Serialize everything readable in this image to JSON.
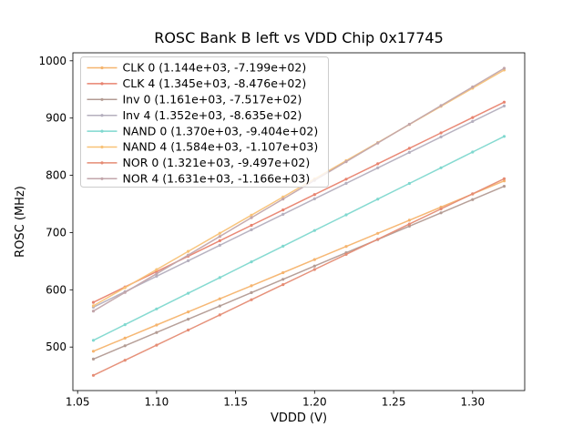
{
  "chart_data": {
    "type": "line",
    "title": "ROSC Bank B left vs VDD Chip 0x17745",
    "xlabel": "VDDD (V)",
    "ylabel": "ROSC (MHz)",
    "xlim": [
      1.047,
      1.333
    ],
    "ylim": [
      424,
      1014
    ],
    "grid": false,
    "legend_position": "upper left",
    "marker": "point",
    "xticks": [
      1.05,
      1.1,
      1.15,
      1.2,
      1.25,
      1.3
    ],
    "xtick_labels": [
      "1.05",
      "1.10",
      "1.15",
      "1.20",
      "1.25",
      "1.30"
    ],
    "yticks": [
      500,
      600,
      700,
      800,
      900,
      1000
    ],
    "ytick_labels": [
      "500",
      "600",
      "700",
      "800",
      "900",
      "1000"
    ],
    "x": [
      1.06,
      1.08,
      1.1,
      1.12,
      1.14,
      1.16,
      1.18,
      1.2,
      1.22,
      1.24,
      1.26,
      1.28,
      1.3,
      1.32
    ],
    "series": [
      {
        "name": "CLK 0 (1.144e+03, -7.199e+02)",
        "fit_slope": 1144.0,
        "fit_intercept": -719.9,
        "color": "#f5b46e",
        "values": [
          492.7,
          515.6,
          538.5,
          561.4,
          584.3,
          607.1,
          630.0,
          652.9,
          675.8,
          698.7,
          721.5,
          744.4,
          767.3,
          790.2
        ]
      },
      {
        "name": "CLK 4 (1.345e+03, -8.476e+02)",
        "fit_slope": 1345.0,
        "fit_intercept": -847.6,
        "color": "#e8836f",
        "values": [
          578.1,
          605.0,
          631.9,
          658.8,
          685.7,
          712.6,
          739.5,
          766.4,
          793.3,
          820.2,
          847.1,
          874.0,
          900.9,
          927.8
        ]
      },
      {
        "name": "Inv 0 (1.161e+03, -7.517e+02)",
        "fit_slope": 1161.0,
        "fit_intercept": -751.7,
        "color": "#b39b93",
        "values": [
          479.0,
          502.2,
          525.4,
          548.6,
          571.8,
          595.1,
          618.3,
          641.5,
          664.7,
          687.9,
          711.2,
          734.4,
          757.6,
          780.8
        ]
      },
      {
        "name": "Inv 4 (1.352e+03, -8.635e+02)",
        "fit_slope": 1352.0,
        "fit_intercept": -863.5,
        "color": "#b4afbe",
        "values": [
          569.6,
          596.7,
          623.7,
          650.7,
          677.8,
          704.8,
          731.9,
          758.9,
          785.9,
          813.0,
          840.0,
          867.1,
          894.1,
          921.1
        ]
      },
      {
        "name": "NAND 0 (1.370e+03, -9.404e+02)",
        "fit_slope": 1370.0,
        "fit_intercept": -940.4,
        "color": "#7fd8cf",
        "values": [
          511.8,
          539.2,
          566.6,
          594.0,
          621.4,
          648.8,
          676.2,
          703.6,
          731.0,
          758.4,
          785.8,
          813.2,
          840.6,
          868.0
        ]
      },
      {
        "name": "NAND 4 (1.584e+03, -1.107e+03)",
        "fit_slope": 1584.0,
        "fit_intercept": -1107.0,
        "color": "#f8c277",
        "values": [
          572.0,
          603.7,
          635.4,
          667.1,
          698.8,
          730.4,
          762.1,
          793.8,
          825.5,
          857.2,
          888.8,
          920.5,
          952.2,
          983.9
        ]
      },
      {
        "name": "NOR 0 (1.321e+03, -9.497e+02)",
        "fit_slope": 1321.0,
        "fit_intercept": -949.7,
        "color": "#e58c74",
        "values": [
          450.6,
          477.0,
          503.4,
          529.8,
          556.2,
          582.7,
          609.1,
          635.5,
          661.9,
          688.3,
          714.8,
          741.2,
          767.6,
          794.0
        ]
      },
      {
        "name": "NOR 4 (1.631e+03, -1.166e+03)",
        "fit_slope": 1631.0,
        "fit_intercept": -1166.0,
        "color": "#c2a6ab",
        "values": [
          562.9,
          595.5,
          628.1,
          660.7,
          693.3,
          726.0,
          758.6,
          791.2,
          823.8,
          856.4,
          889.1,
          921.7,
          954.3,
          986.9
        ]
      }
    ]
  }
}
